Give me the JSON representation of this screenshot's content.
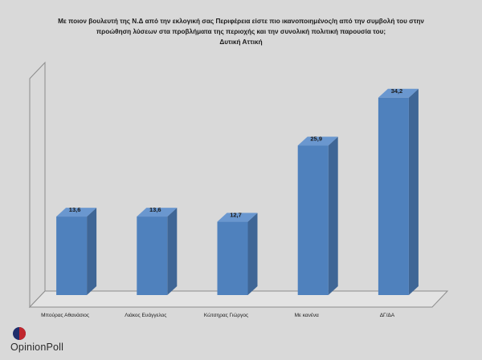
{
  "chart_data": {
    "type": "bar",
    "title_lines": [
      "Με ποιον βουλευτή της Ν.Δ από την εκλογική σας Περιφέρεια είστε πιο ικανοποιημένος/η από την συμβολή του στην",
      "προώθηση λύσεων στα προβλήματα της περιοχής και την συνολική πολιτική παρουσία του;",
      "Δυτική  Αττική"
    ],
    "categories": [
      "Μπούρας Αθανάσιος",
      "Λιάκος Ευάγγελος",
      "Κώτσηρας Γιώργος",
      "Με κανένα",
      "ΔΓ/ΔΑ"
    ],
    "values": [
      13.6,
      13.6,
      12.7,
      25.9,
      34.2
    ],
    "value_labels": [
      "13,6",
      "13,6",
      "12,7",
      "25,9",
      "34,2"
    ],
    "ylim": [
      0,
      40
    ],
    "grid": false,
    "bar_color": "#4f81bd"
  },
  "logo": {
    "text": "OpinionPoll"
  }
}
